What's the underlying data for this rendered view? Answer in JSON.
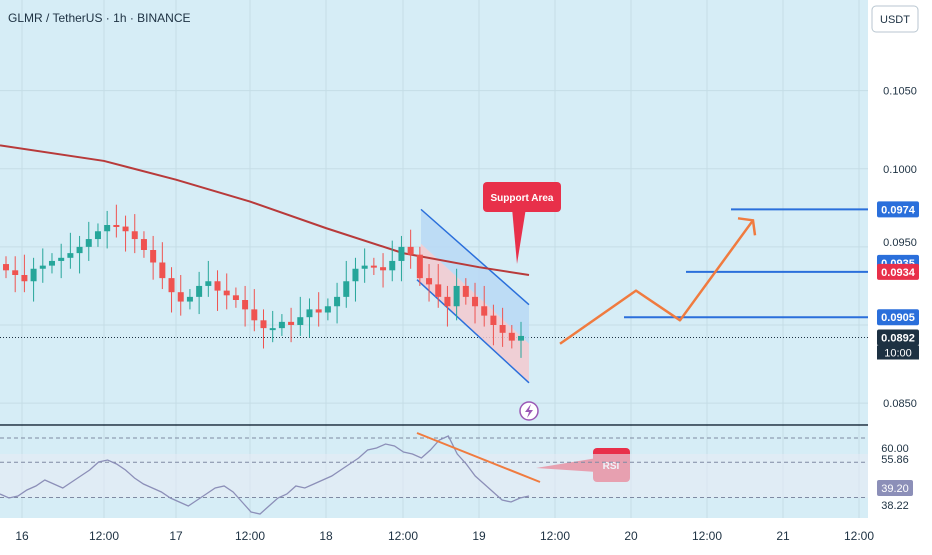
{
  "header": {
    "symbol_title": "GLMR / TetherUS · 1h · BINANCE",
    "currency_button": "USDT"
  },
  "colors": {
    "background": "#d6edf6",
    "grid": "#c5dde6",
    "candle_up": "#26a69a",
    "candle_down": "#ef5350",
    "moving_average": "#b83a3a",
    "channel_line": "#2a6fdb",
    "channel_upper_fill": "#b9d8f5",
    "channel_lower_fill": "#f3c9cf",
    "projection": "#f07b3f",
    "level_line": "#2a6fdb",
    "callout": "#e8304a",
    "rsi_line": "#8c8fb8",
    "rsi_band": "#e6ebf5"
  },
  "annotations": {
    "support_area_label": "Support Area",
    "rsi_label": "RSI",
    "lightning_icon": "lightning-icon"
  },
  "chart_data": [
    {
      "type": "candlestick",
      "title": "GLMR / TetherUS · 1h · BINANCE",
      "y_axis_ticks": [
        "0.1050",
        "0.1000",
        "0.0850"
      ],
      "ylim": [
        0.0836,
        0.1108
      ],
      "x_axis_ticks": [
        "16",
        "12:00",
        "17",
        "12:00",
        "18",
        "12:00",
        "19",
        "12:00",
        "20",
        "12:00",
        "21",
        "12:00"
      ],
      "price_labels": [
        {
          "text": "0.0974",
          "value": 0.0974,
          "color": "#2a6fdb"
        },
        {
          "text": "0.0935",
          "value": 0.0935,
          "color": "#2a6fdb"
        },
        {
          "text": "0.0934",
          "value": 0.0934,
          "color": "#e8304a"
        },
        {
          "text": "0.0905",
          "value": 0.0905,
          "color": "#2a6fdb"
        },
        {
          "text": "0.0892",
          "value": 0.0892,
          "color": "#1d3142"
        }
      ],
      "countdown": "10:00",
      "partial_tick": "0.0950",
      "closes": [
        0.0935,
        0.0932,
        0.0928,
        0.0936,
        0.0938,
        0.0941,
        0.0943,
        0.0946,
        0.095,
        0.0955,
        0.096,
        0.0964,
        0.0963,
        0.096,
        0.0955,
        0.0948,
        0.094,
        0.093,
        0.0921,
        0.0915,
        0.0918,
        0.0925,
        0.0928,
        0.0922,
        0.0919,
        0.0916,
        0.091,
        0.0903,
        0.0898,
        0.0898,
        0.0902,
        0.09,
        0.0905,
        0.091,
        0.0908,
        0.0912,
        0.0918,
        0.0928,
        0.0936,
        0.0938,
        0.0937,
        0.0935,
        0.0941,
        0.095,
        0.0945,
        0.093,
        0.0926,
        0.0918,
        0.0912,
        0.0925,
        0.0918,
        0.0912,
        0.0906,
        0.09,
        0.0895,
        0.089,
        0.0893
      ],
      "moving_average": [
        {
          "x": "16 00:00",
          "y": 0.1015
        },
        {
          "x": "16 12:00",
          "y": 0.1005
        },
        {
          "x": "17 00:00",
          "y": 0.0993
        },
        {
          "x": "17 12:00",
          "y": 0.0979
        },
        {
          "x": "18 00:00",
          "y": 0.0962
        },
        {
          "x": "18 12:00",
          "y": 0.0946
        },
        {
          "x": "19 00:00",
          "y": 0.0937
        },
        {
          "x": "19 06:00",
          "y": 0.0932
        }
      ],
      "levels": [
        0.0974,
        0.0934,
        0.0905
      ],
      "projection_path": [
        0.0888,
        0.0922,
        0.0903,
        0.0967
      ]
    },
    {
      "type": "line",
      "title": "RSI",
      "y_axis_ticks": [
        "60.00",
        "55.86",
        "39.20",
        "38.22"
      ],
      "ylim": [
        28,
        74
      ],
      "current_value": "39.20",
      "values": [
        40,
        38,
        39,
        42,
        44,
        47,
        45,
        43,
        46,
        49,
        52,
        56,
        57,
        55,
        52,
        48,
        45,
        43,
        41,
        38,
        36,
        34,
        37,
        40,
        43,
        44,
        41,
        36,
        31,
        30,
        34,
        38,
        40,
        44,
        43,
        45,
        47,
        49,
        52,
        55,
        58,
        62,
        63,
        65,
        64,
        61,
        60,
        58,
        62,
        67,
        69,
        60,
        55,
        49,
        45,
        41,
        37,
        36,
        38,
        39
      ]
    }
  ]
}
